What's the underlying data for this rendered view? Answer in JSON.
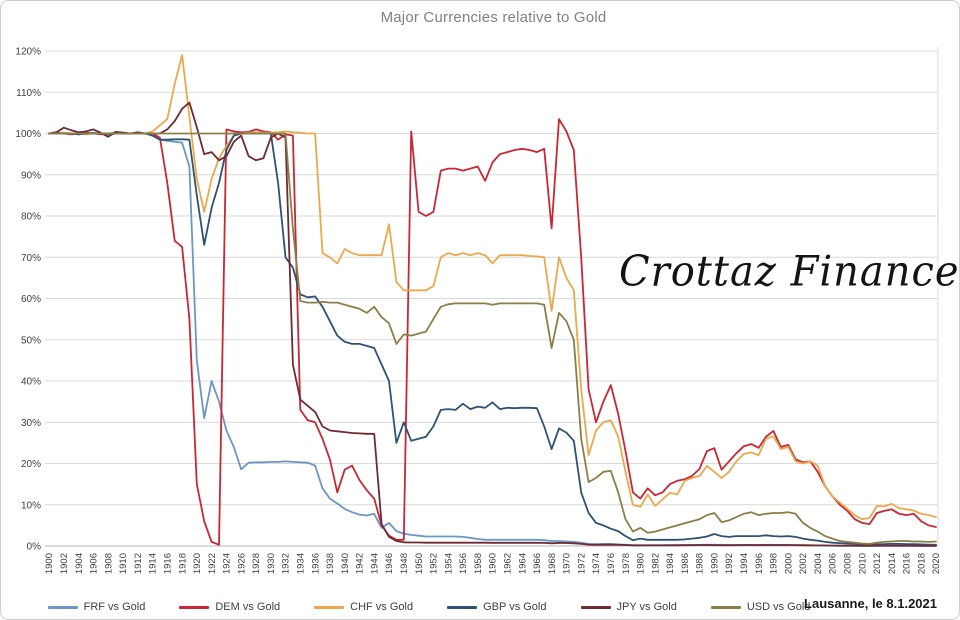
{
  "title": "Major Currencies relative to Gold",
  "watermark": "Crottaz Finance",
  "footer": "Lausanne, le 8.1.2021",
  "colors": {
    "grid": "#d9d9d9",
    "axis_line": "#b7b7b7",
    "tick_text": "#404040",
    "title_text": "#808080"
  },
  "chart_data": {
    "type": "line",
    "title": "Major Currencies relative to Gold",
    "xlabel": "",
    "ylabel": "",
    "ylim": [
      0,
      120
    ],
    "grid": "horizontal",
    "legend_position": "bottom",
    "x_start": 1900,
    "x_end": 2020,
    "x_step": 1,
    "x_tick_labels": [
      1900,
      1902,
      1904,
      1906,
      1908,
      1910,
      1912,
      1914,
      1916,
      1918,
      1920,
      1922,
      1924,
      1926,
      1928,
      1930,
      1932,
      1934,
      1936,
      1938,
      1940,
      1942,
      1944,
      1946,
      1948,
      1950,
      1952,
      1954,
      1956,
      1958,
      1960,
      1962,
      1964,
      1966,
      1968,
      1970,
      1972,
      1974,
      1976,
      1978,
      1980,
      1982,
      1984,
      1986,
      1988,
      1990,
      1992,
      1994,
      1996,
      1998,
      2000,
      2002,
      2004,
      2006,
      2008,
      2010,
      2012,
      2014,
      2016,
      2018,
      2020
    ],
    "y_tick_labels": [
      "0%",
      "10%",
      "20%",
      "30%",
      "40%",
      "50%",
      "60%",
      "70%",
      "80%",
      "90%",
      "100%",
      "110%",
      "120%"
    ],
    "series": [
      {
        "name": "FRF vs Gold",
        "color": "#6b96c9",
        "values": [
          100,
          100,
          100.2,
          100,
          99.8,
          100,
          100.2,
          100,
          99.5,
          100,
          100,
          100,
          100,
          100,
          100,
          98.5,
          98.2,
          98,
          97.8,
          92,
          45,
          31,
          40,
          35,
          28,
          24,
          18.6,
          20.2,
          20.3,
          20.3,
          20.4,
          20.4,
          20.5,
          20.4,
          20.3,
          20.2,
          19.5,
          14,
          11.5,
          10.3,
          9,
          8.2,
          7.6,
          7.4,
          7.8,
          4.4,
          5.6,
          3.6,
          3,
          2.7,
          2.5,
          2.3,
          2.3,
          2.3,
          2.3,
          2.3,
          2.2,
          2,
          1.7,
          1.5,
          1.5,
          1.5,
          1.5,
          1.5,
          1.5,
          1.5,
          1.5,
          1.4,
          1.2,
          1.2,
          1.1,
          1,
          0.8,
          0.5,
          0.45,
          0.5,
          0.5,
          0.4,
          0.3,
          0.2,
          0.2,
          0.2,
          0.2,
          0.2,
          0.2,
          0.22,
          0.25,
          0.25,
          0.25,
          0.28,
          0.28,
          0.25,
          0.25,
          0.25,
          0.26,
          0.27,
          0.25,
          0.26,
          0.25,
          0.24,
          0.24,
          0.22,
          0.18,
          0.15,
          0.13,
          0.11,
          0.09,
          0.07,
          0.06,
          0.05,
          0.05,
          0.04,
          0.05,
          0.06,
          0.06,
          0.06,
          0.06,
          0.06,
          0.05,
          0.05,
          0.05
        ]
      },
      {
        "name": "DEM vs Gold",
        "color": "#cb2633",
        "values": [
          100,
          100.3,
          100,
          99.8,
          100,
          100.2,
          100,
          99.8,
          100,
          100,
          100.2,
          100,
          100,
          100,
          100,
          99,
          88,
          74,
          72.5,
          55,
          15,
          6,
          1,
          0.3,
          101,
          100.5,
          100.3,
          100.4,
          101,
          100.5,
          100.3,
          98.5,
          99.8,
          99.5,
          33,
          30.5,
          30,
          26,
          21,
          13,
          18.5,
          19.5,
          16,
          13.5,
          11.5,
          5,
          2.5,
          1.5,
          1.5,
          100.5,
          81,
          80,
          81,
          91,
          91.5,
          91.5,
          91,
          91.5,
          92,
          88.5,
          93,
          95,
          95.5,
          96,
          96.3,
          96,
          95.5,
          96.3,
          77,
          103.5,
          100.5,
          96,
          70,
          38,
          30,
          35,
          39,
          32,
          23,
          13,
          11.5,
          14,
          12.3,
          13,
          15,
          15.8,
          16.2,
          17,
          18.7,
          23,
          23.7,
          18.5,
          20.5,
          22.5,
          24.2,
          24.7,
          23.8,
          26.5,
          27.9,
          24,
          24.5,
          21,
          20.3,
          20.5,
          18,
          14.5,
          12,
          10,
          8.5,
          6.5,
          5.6,
          5.3,
          8,
          8.5,
          8.9,
          7.8,
          7.5,
          7.8,
          6,
          5,
          4.6
        ]
      },
      {
        "name": "CHF vs Gold",
        "color": "#eda84c",
        "values": [
          100,
          100,
          100.2,
          100,
          100,
          99.8,
          100,
          100,
          100,
          100.2,
          100,
          100,
          100,
          100,
          100.5,
          102,
          103.5,
          112,
          119,
          104,
          89,
          81,
          89,
          94,
          97,
          99.5,
          100,
          100.2,
          100.3,
          100.2,
          100.2,
          100.3,
          100.5,
          100.3,
          100.2,
          100,
          100,
          71,
          70,
          68.5,
          72,
          71,
          70.5,
          70.5,
          70.5,
          70.5,
          78,
          64,
          62,
          62,
          62,
          62,
          63,
          70,
          71,
          70.5,
          71,
          70.5,
          71,
          70.5,
          68.5,
          70.5,
          70.5,
          70.5,
          70.5,
          70.3,
          70.2,
          70,
          57,
          70,
          65,
          62,
          38,
          22,
          28,
          30,
          30.5,
          26.5,
          18,
          10,
          9.5,
          12.5,
          9.7,
          11.3,
          12.9,
          12.5,
          15.8,
          16.5,
          17,
          19.4,
          18,
          16.5,
          18,
          20.5,
          22.3,
          22.7,
          22,
          26,
          26.6,
          23.5,
          24,
          20.5,
          20,
          20.5,
          19.5,
          14.5,
          12,
          10.5,
          9,
          7.5,
          6.5,
          6.8,
          9.7,
          9.6,
          10.2,
          9.2,
          8.9,
          8.6,
          7.8,
          7.5,
          7
        ]
      },
      {
        "name": "GBP vs Gold",
        "color": "#2f5174",
        "values": [
          100,
          100,
          100,
          100,
          99.8,
          100,
          100,
          100,
          100,
          100,
          100,
          100,
          100,
          100,
          99.5,
          98.5,
          98.5,
          98.6,
          98.6,
          98.5,
          85,
          73,
          82,
          88,
          96,
          99.5,
          100,
          100,
          100,
          100,
          100,
          88,
          70,
          67.5,
          61,
          60.3,
          60.5,
          58,
          54.5,
          51,
          49.5,
          49,
          49,
          48.5,
          48,
          44,
          40,
          25,
          30,
          25.5,
          26,
          26.5,
          29,
          33,
          33.2,
          33,
          34.5,
          33.2,
          33.8,
          33.5,
          34.8,
          33.2,
          33.5,
          33.4,
          33.5,
          33.5,
          33.4,
          29,
          23.5,
          28.5,
          27.5,
          25.5,
          13,
          8,
          5.6,
          5,
          4.2,
          3.6,
          2.4,
          1.4,
          1.8,
          1.5,
          1.5,
          1.5,
          1.5,
          1.5,
          1.6,
          1.8,
          2,
          2.3,
          2.9,
          2.4,
          2.2,
          2.4,
          2.4,
          2.4,
          2.4,
          2.6,
          2.4,
          2.3,
          2.4,
          2.2,
          1.8,
          1.5,
          1.3,
          1,
          0.8,
          0.7,
          0.6,
          0.5,
          0.4,
          0.35,
          0.4,
          0.45,
          0.5,
          0.5,
          0.45,
          0.45,
          0.4,
          0.35,
          0.3
        ]
      },
      {
        "name": "JPY vs Gold",
        "color": "#6f2a33",
        "values": [
          100,
          100.3,
          101.4,
          100.8,
          100.3,
          100.5,
          101,
          100.2,
          99.2,
          100.4,
          100.2,
          100,
          100.3,
          100,
          100,
          100,
          101,
          103,
          106,
          107.5,
          101.5,
          95,
          95.5,
          93.5,
          94.5,
          98,
          99.5,
          94.5,
          93.5,
          94,
          99,
          100,
          99,
          44,
          35.5,
          34,
          32.5,
          29,
          28,
          27.8,
          27.6,
          27.4,
          27.3,
          27.2,
          27.2,
          5.3,
          2.2,
          1.2,
          0.9,
          0.85,
          0.85,
          0.8,
          0.8,
          0.8,
          0.8,
          0.8,
          0.8,
          0.8,
          0.8,
          0.8,
          0.78,
          0.78,
          0.78,
          0.78,
          0.78,
          0.78,
          0.78,
          0.75,
          0.65,
          0.75,
          0.72,
          0.65,
          0.5,
          0.35,
          0.3,
          0.32,
          0.33,
          0.3,
          0.25,
          0.15,
          0.13,
          0.15,
          0.14,
          0.15,
          0.16,
          0.17,
          0.2,
          0.22,
          0.24,
          0.25,
          0.23,
          0.2,
          0.2,
          0.22,
          0.24,
          0.25,
          0.23,
          0.24,
          0.25,
          0.24,
          0.25,
          0.23,
          0.2,
          0.18,
          0.15,
          0.12,
          0.1,
          0.08,
          0.08,
          0.07,
          0.06,
          0.06,
          0.07,
          0.07,
          0.07,
          0.07,
          0.07,
          0.07,
          0.06,
          0.06,
          0.05
        ]
      },
      {
        "name": "USD vs Gold",
        "color": "#8a7f48",
        "values": [
          100,
          100,
          100,
          100,
          100,
          100,
          100,
          100,
          100,
          100,
          100,
          100,
          100,
          100,
          100,
          100,
          100,
          100,
          100,
          100,
          100,
          100,
          100,
          100,
          100,
          100,
          100,
          100,
          100,
          100,
          100,
          100,
          100,
          77,
          59.4,
          59,
          59,
          59.2,
          59,
          59,
          58.5,
          58,
          57.5,
          56.5,
          58,
          55.5,
          54,
          49,
          51.3,
          51,
          51.5,
          52,
          55,
          58,
          58.6,
          58.8,
          58.8,
          58.8,
          58.8,
          58.8,
          58.5,
          58.8,
          58.8,
          58.8,
          58.8,
          58.8,
          58.8,
          58.5,
          48,
          56.5,
          54.5,
          50,
          26,
          15.5,
          16.5,
          18,
          18.2,
          13,
          6.5,
          3.5,
          4.4,
          3.2,
          3.5,
          4,
          4.5,
          5,
          5.5,
          6,
          6.5,
          7.5,
          8,
          5.8,
          6.2,
          7,
          7.8,
          8.2,
          7.5,
          7.8,
          8,
          8,
          8.2,
          7.8,
          5.6,
          4.4,
          3.5,
          2.4,
          1.8,
          1.2,
          1,
          0.8,
          0.6,
          0.5,
          0.8,
          1,
          1.1,
          1.2,
          1.2,
          1.1,
          1.1,
          1,
          1.1
        ]
      }
    ]
  }
}
